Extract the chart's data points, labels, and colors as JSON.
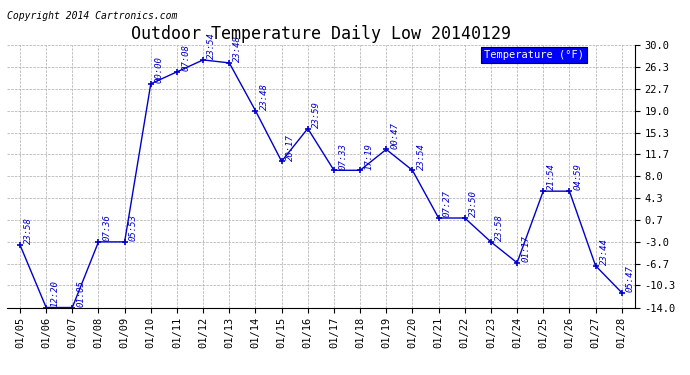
{
  "title": "Outdoor Temperature Daily Low 20140129",
  "copyright_text": "Copyright 2014 Cartronics.com",
  "legend_label": "Temperature (°F)",
  "dates": [
    "01/05",
    "01/06",
    "01/07",
    "01/08",
    "01/09",
    "01/10",
    "01/11",
    "01/12",
    "01/13",
    "01/14",
    "01/15",
    "01/16",
    "01/17",
    "01/18",
    "01/19",
    "01/20",
    "01/21",
    "01/22",
    "01/23",
    "01/24",
    "01/25",
    "01/26",
    "01/27",
    "01/28"
  ],
  "values": [
    -3.5,
    -14.0,
    -14.0,
    -3.0,
    -3.0,
    23.5,
    25.5,
    27.5,
    27.0,
    19.0,
    10.5,
    16.0,
    9.0,
    9.0,
    12.5,
    9.0,
    1.0,
    1.0,
    -3.0,
    -6.5,
    5.5,
    5.5,
    -7.0,
    -11.5
  ],
  "time_labels": [
    "23:58",
    "12:20",
    "01:05",
    "07:36",
    "05:53",
    "00:00",
    "07:08",
    "23:54",
    "23:48",
    "23:48",
    "20:17",
    "23:59",
    "07:33",
    "17:19",
    "00:47",
    "23:54",
    "07:27",
    "23:50",
    "23:58",
    "01:17",
    "21:54",
    "04:59",
    "23:44",
    "05:47"
  ],
  "line_color": "#0000cc",
  "background_color": "#ffffff",
  "grid_color": "#aaaaaa",
  "ylim": [
    -14.0,
    30.0
  ],
  "yticks": [
    -14.0,
    -10.3,
    -6.7,
    -3.0,
    0.7,
    4.3,
    8.0,
    11.7,
    15.3,
    19.0,
    22.7,
    26.3,
    30.0
  ],
  "title_fontsize": 12,
  "label_fontsize": 6.5,
  "tick_fontsize": 7.5,
  "copyright_fontsize": 7
}
